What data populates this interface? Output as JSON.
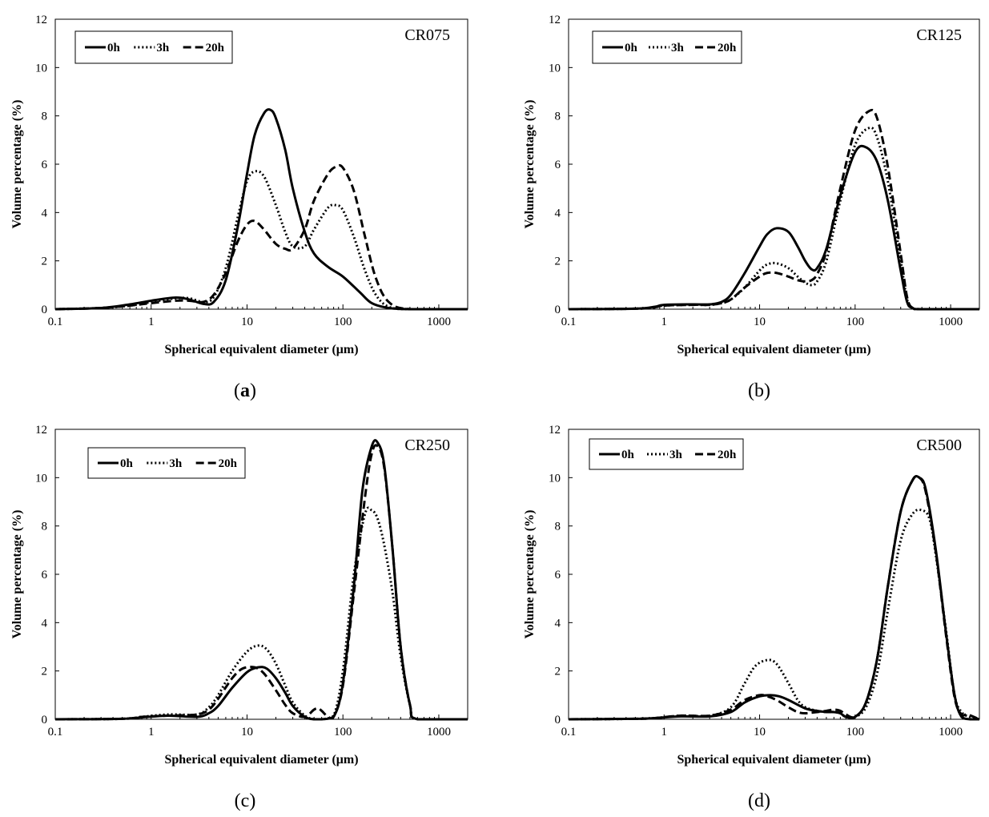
{
  "chart_data": [
    {
      "id": "a",
      "type": "line",
      "label": "CR075",
      "caption_letter": "a",
      "caption_bold": true,
      "xlabel": "Spherical equivalent diameter (μm)",
      "ylabel": "Volume percentage (%)",
      "xscale": "log",
      "xlim": [
        0.1,
        2000
      ],
      "ylim": [
        0,
        12
      ],
      "xticks": [
        "0.1",
        "1",
        "10",
        "100",
        "1000"
      ],
      "yticks": [
        "0",
        "2",
        "4",
        "6",
        "8",
        "10",
        "12"
      ],
      "legend_position": "top-left",
      "series": [
        {
          "name": "0h",
          "style": "solid",
          "x": [
            0.1,
            0.3,
            0.6,
            1,
            1.8,
            2.5,
            3.5,
            4.5,
            6,
            8,
            10,
            12,
            15,
            17.5,
            20,
            25,
            30,
            40,
            50,
            70,
            100,
            150,
            200,
            300,
            500,
            1000,
            2000
          ],
          "y": [
            0,
            0.05,
            0.2,
            0.35,
            0.48,
            0.4,
            0.22,
            0.3,
            1.2,
            3.4,
            5.6,
            7.2,
            8.1,
            8.25,
            7.9,
            6.6,
            5.0,
            3.2,
            2.3,
            1.75,
            1.35,
            0.7,
            0.25,
            0.05,
            0,
            0,
            0
          ]
        },
        {
          "name": "3h",
          "style": "dotted",
          "x": [
            0.1,
            0.3,
            0.6,
            1,
            1.8,
            2.5,
            3.5,
            4.5,
            6,
            8,
            10,
            12,
            15,
            20,
            25,
            30,
            40,
            50,
            70,
            85,
            100,
            130,
            170,
            220,
            300,
            500,
            2000
          ],
          "y": [
            0,
            0.05,
            0.15,
            0.3,
            0.45,
            0.45,
            0.3,
            0.5,
            1.7,
            3.8,
            5.3,
            5.7,
            5.5,
            4.3,
            3.2,
            2.6,
            2.6,
            3.3,
            4.2,
            4.3,
            4.1,
            3.0,
            1.6,
            0.6,
            0.1,
            0,
            0
          ]
        },
        {
          "name": "20h",
          "style": "dashed",
          "x": [
            0.1,
            0.3,
            0.6,
            1,
            1.8,
            2.5,
            3.5,
            4.5,
            6,
            8,
            10,
            12,
            15,
            20,
            25,
            30,
            40,
            50,
            70,
            85,
            100,
            130,
            170,
            220,
            300,
            500,
            2000
          ],
          "y": [
            0,
            0.05,
            0.15,
            0.25,
            0.35,
            0.35,
            0.3,
            0.6,
            1.5,
            2.8,
            3.5,
            3.65,
            3.3,
            2.7,
            2.5,
            2.5,
            3.3,
            4.5,
            5.6,
            5.9,
            5.85,
            4.9,
            3.0,
            1.3,
            0.3,
            0,
            0
          ]
        }
      ]
    },
    {
      "id": "b",
      "type": "line",
      "label": "CR125",
      "caption_letter": "b",
      "caption_bold": false,
      "xlabel": "Spherical equivalent diameter (μm)",
      "ylabel": "Volume percentage (%)",
      "xscale": "log",
      "xlim": [
        0.1,
        2000
      ],
      "ylim": [
        0,
        12
      ],
      "xticks": [
        "0.1",
        "1",
        "10",
        "100",
        "1000"
      ],
      "yticks": [
        "0",
        "2",
        "4",
        "6",
        "8",
        "10",
        "12"
      ],
      "legend_position": "top-left",
      "series": [
        {
          "name": "0h",
          "style": "solid",
          "x": [
            0.1,
            0.5,
            0.8,
            1,
            2,
            3,
            4,
            5,
            7,
            10,
            12,
            15,
            20,
            25,
            30,
            35,
            40,
            50,
            70,
            100,
            130,
            170,
            220,
            300,
            350,
            400,
            500,
            2000
          ],
          "y": [
            0,
            0.02,
            0.1,
            0.18,
            0.2,
            0.2,
            0.3,
            0.6,
            1.5,
            2.6,
            3.1,
            3.35,
            3.2,
            2.6,
            2.0,
            1.65,
            1.7,
            2.5,
            4.7,
            6.5,
            6.7,
            6.1,
            4.5,
            1.6,
            0.3,
            0.05,
            0,
            0
          ]
        },
        {
          "name": "3h",
          "style": "dotted",
          "x": [
            0.1,
            0.5,
            0.8,
            1,
            2,
            3,
            4,
            5,
            7,
            10,
            12,
            15,
            20,
            25,
            30,
            35,
            40,
            50,
            70,
            100,
            140,
            170,
            220,
            300,
            350,
            400,
            500,
            2000
          ],
          "y": [
            0,
            0.02,
            0.08,
            0.15,
            0.18,
            0.18,
            0.25,
            0.4,
            0.9,
            1.6,
            1.85,
            1.9,
            1.7,
            1.35,
            1.1,
            1.0,
            1.15,
            2.0,
            4.5,
            6.8,
            7.5,
            7.1,
            5.3,
            2.0,
            0.4,
            0.05,
            0,
            0
          ]
        },
        {
          "name": "20h",
          "style": "dashed",
          "x": [
            0.1,
            0.5,
            0.8,
            1,
            2,
            3,
            4,
            5,
            7,
            10,
            12,
            15,
            20,
            25,
            30,
            35,
            40,
            50,
            70,
            100,
            140,
            170,
            220,
            300,
            350,
            400,
            500,
            2000
          ],
          "y": [
            0,
            0.02,
            0.08,
            0.15,
            0.18,
            0.18,
            0.25,
            0.4,
            0.9,
            1.35,
            1.5,
            1.5,
            1.35,
            1.2,
            1.15,
            1.2,
            1.45,
            2.4,
            5.0,
            7.4,
            8.2,
            7.9,
            5.9,
            2.3,
            0.5,
            0.05,
            0,
            0
          ]
        }
      ]
    },
    {
      "id": "c",
      "type": "line",
      "label": "CR250",
      "caption_letter": "c",
      "caption_bold": false,
      "xlabel": "Spherical equivalent diameter (μm)",
      "ylabel": "Volume percentage (%)",
      "xscale": "log",
      "xlim": [
        0.1,
        2000
      ],
      "ylim": [
        0,
        12
      ],
      "xticks": [
        "0.1",
        "1",
        "10",
        "100",
        "1000"
      ],
      "yticks": [
        "0",
        "2",
        "4",
        "6",
        "8",
        "10",
        "12"
      ],
      "legend_position": "top-left",
      "series": [
        {
          "name": "0h",
          "style": "solid",
          "x": [
            0.1,
            0.5,
            0.8,
            1.5,
            3,
            4,
            5,
            7,
            10,
            13,
            16,
            20,
            25,
            30,
            40,
            50,
            60,
            80,
            100,
            130,
            160,
            200,
            230,
            270,
            330,
            400,
            500,
            600,
            2000
          ],
          "y": [
            0,
            0.02,
            0.08,
            0.15,
            0.1,
            0.25,
            0.55,
            1.3,
            1.95,
            2.15,
            2.1,
            1.7,
            1.1,
            0.55,
            0.1,
            0,
            0,
            0.1,
            1.5,
            5.5,
            9.5,
            11.3,
            11.45,
            10.5,
            7.0,
            3.0,
            0.6,
            0,
            0
          ]
        },
        {
          "name": "3h",
          "style": "dotted",
          "x": [
            0.1,
            0.5,
            0.8,
            1.5,
            3,
            4,
            5,
            7,
            10,
            13,
            16,
            20,
            25,
            30,
            40,
            50,
            60,
            80,
            100,
            130,
            170,
            200,
            230,
            270,
            330,
            400,
            500,
            600,
            2000
          ],
          "y": [
            0,
            0.02,
            0.1,
            0.2,
            0.2,
            0.5,
            1.0,
            2.0,
            2.8,
            3.05,
            2.9,
            2.3,
            1.4,
            0.7,
            0.15,
            0,
            0,
            0.15,
            2.0,
            6.0,
            8.5,
            8.65,
            8.3,
            7.2,
            5.2,
            2.6,
            0.6,
            0,
            0
          ]
        },
        {
          "name": "20h",
          "style": "dashed",
          "x": [
            0.1,
            0.5,
            0.8,
            1.5,
            3,
            4,
            5,
            7,
            9,
            12,
            15,
            20,
            25,
            30,
            40,
            50,
            55,
            60,
            70,
            80,
            100,
            130,
            170,
            200,
            230,
            270,
            330,
            400,
            500,
            600,
            2000
          ],
          "y": [
            0,
            0.02,
            0.1,
            0.15,
            0.2,
            0.4,
            0.85,
            1.7,
            2.1,
            2.15,
            1.9,
            1.2,
            0.6,
            0.25,
            0.1,
            0.4,
            0.45,
            0.35,
            0.1,
            0.1,
            1.4,
            5.2,
            9.2,
            11.0,
            11.3,
            10.4,
            7.0,
            3.0,
            0.6,
            0,
            0
          ]
        }
      ]
    },
    {
      "id": "d",
      "type": "line",
      "label": "CR500",
      "caption_letter": "d",
      "caption_bold": false,
      "xlabel": "Spherical equivalent diameter (μm)",
      "ylabel": "Volume percentage (%)",
      "xscale": "log",
      "xlim": [
        0.1,
        2000
      ],
      "ylim": [
        0,
        12
      ],
      "xticks": [
        "0.1",
        "1",
        "10",
        "100",
        "1000"
      ],
      "yticks": [
        "0",
        "2",
        "4",
        "6",
        "8",
        "10",
        "12"
      ],
      "legend_position": "top-left",
      "series": [
        {
          "name": "0h",
          "style": "solid",
          "x": [
            0.1,
            0.5,
            0.8,
            1.5,
            3,
            5,
            7,
            10,
            13,
            16,
            20,
            30,
            40,
            50,
            60,
            70,
            80,
            100,
            130,
            170,
            220,
            300,
            400,
            470,
            550,
            700,
            900,
            1100,
            1300,
            1600,
            2000
          ],
          "y": [
            0,
            0.02,
            0.05,
            0.12,
            0.12,
            0.3,
            0.7,
            0.95,
            1.0,
            0.95,
            0.8,
            0.45,
            0.35,
            0.3,
            0.3,
            0.25,
            0.1,
            0.1,
            0.7,
            2.5,
            5.5,
            8.6,
            9.9,
            10.0,
            9.5,
            7.0,
            3.5,
            1.0,
            0.1,
            0,
            0
          ]
        },
        {
          "name": "3h",
          "style": "dotted",
          "x": [
            0.1,
            0.5,
            0.8,
            1.5,
            3,
            5,
            7,
            9,
            12,
            15,
            20,
            25,
            30,
            40,
            50,
            60,
            70,
            80,
            100,
            130,
            170,
            220,
            300,
            400,
            500,
            600,
            700,
            900,
            1100,
            1300,
            1600,
            2000
          ],
          "y": [
            0,
            0.02,
            0.05,
            0.15,
            0.15,
            0.5,
            1.5,
            2.2,
            2.45,
            2.3,
            1.5,
            0.8,
            0.5,
            0.35,
            0.3,
            0.3,
            0.25,
            0.1,
            0.1,
            0.5,
            1.9,
            4.5,
            7.4,
            8.5,
            8.65,
            8.3,
            6.8,
            3.6,
            1.0,
            0.3,
            0.1,
            0
          ]
        },
        {
          "name": "20h",
          "style": "dashed",
          "x": [
            0.1,
            0.5,
            0.8,
            1.5,
            3,
            5,
            7,
            10,
            12,
            15,
            20,
            25,
            30,
            40,
            50,
            60,
            70,
            80,
            100,
            130,
            170,
            220,
            300,
            400,
            470,
            550,
            700,
            900,
            1100,
            1300,
            1500,
            2000
          ],
          "y": [
            0,
            0.02,
            0.05,
            0.15,
            0.15,
            0.4,
            0.8,
            1.0,
            0.95,
            0.8,
            0.5,
            0.3,
            0.25,
            0.3,
            0.35,
            0.4,
            0.35,
            0.2,
            0.1,
            0.7,
            2.5,
            5.5,
            8.6,
            9.9,
            10.0,
            9.4,
            6.9,
            3.4,
            0.9,
            0.2,
            0.2,
            0
          ]
        }
      ]
    }
  ]
}
